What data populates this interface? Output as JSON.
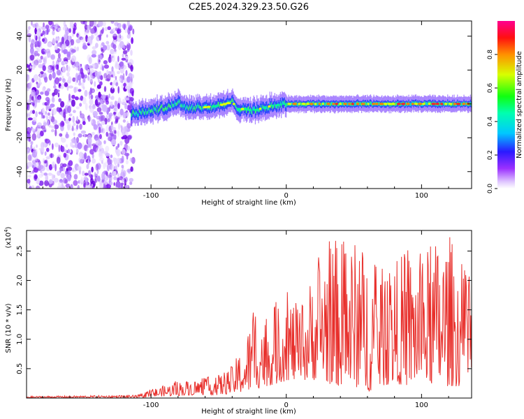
{
  "title": "C2E5.2024.329.23.50.G26",
  "chart_data": [
    {
      "type": "heatmap",
      "xlabel": "Height of straight line (km)",
      "ylabel": "Frequency (Hz)",
      "xlim": [
        -192,
        137
      ],
      "ylim": [
        -50,
        49
      ],
      "xticks": [
        -100,
        0,
        100
      ],
      "yticks": [
        -40,
        -20,
        0,
        20,
        40
      ],
      "colorbar": {
        "label": "Normalized spectral amplitude",
        "range": [
          0,
          1
        ],
        "ticks": [
          0.0,
          0.2,
          0.4,
          0.6,
          0.8
        ]
      },
      "noise_region_x": [
        -192,
        -113
      ],
      "signal_track": {
        "x": [
          -115,
          -100,
          -90,
          -80,
          -75,
          -70,
          -60,
          -50,
          -40,
          -35,
          -30,
          -25,
          -20,
          -10,
          0,
          10,
          20,
          30,
          40,
          50,
          60,
          70,
          80,
          90,
          100,
          110,
          120,
          130,
          137
        ],
        "freq_hz": [
          -6,
          -4,
          -2,
          1,
          -2,
          -2,
          -2,
          -1,
          1,
          -3,
          -3,
          -4,
          -3,
          -1,
          0,
          0,
          0,
          0,
          0,
          0,
          0,
          0,
          0,
          0,
          0,
          0,
          0,
          0,
          0
        ]
      }
    },
    {
      "type": "line",
      "xlabel": "Height of straight line (km)",
      "ylabel": "SNR (10 * v/v)",
      "y_multiplier": "(x10",
      "y_multiplier_exp": "4",
      "y_multiplier_close": ")",
      "xlim": [
        -192,
        137
      ],
      "ylim": [
        0,
        2.85
      ],
      "xticks": [
        -100,
        0,
        100
      ],
      "yticks": [
        0.5,
        1.0,
        1.5,
        2.0,
        2.5
      ],
      "line_color": "#e8302c",
      "envelope": {
        "x": [
          -192,
          -110,
          -100,
          -90,
          -80,
          -70,
          -60,
          -50,
          -40,
          -30,
          -22,
          -15,
          -5,
          0,
          10,
          20,
          25,
          30,
          40,
          50,
          60,
          70,
          80,
          90,
          100,
          110,
          120,
          130,
          137
        ],
        "max": [
          0.03,
          0.05,
          0.15,
          0.22,
          0.3,
          0.3,
          0.35,
          0.4,
          0.55,
          1.0,
          1.8,
          1.35,
          1.75,
          1.9,
          1.5,
          2.2,
          2.6,
          2.75,
          2.7,
          2.7,
          2.55,
          2.2,
          2.35,
          2.55,
          2.45,
          2.7,
          2.85,
          2.3,
          2.0
        ],
        "min": [
          0.0,
          0.0,
          0.02,
          0.03,
          0.04,
          0.05,
          0.06,
          0.05,
          0.08,
          0.1,
          0.15,
          0.2,
          0.25,
          0.3,
          0.3,
          0.3,
          0.35,
          0.25,
          0.2,
          0.2,
          0.1,
          0.2,
          0.25,
          0.2,
          0.3,
          0.2,
          0.2,
          0.2,
          0.3
        ]
      }
    }
  ]
}
